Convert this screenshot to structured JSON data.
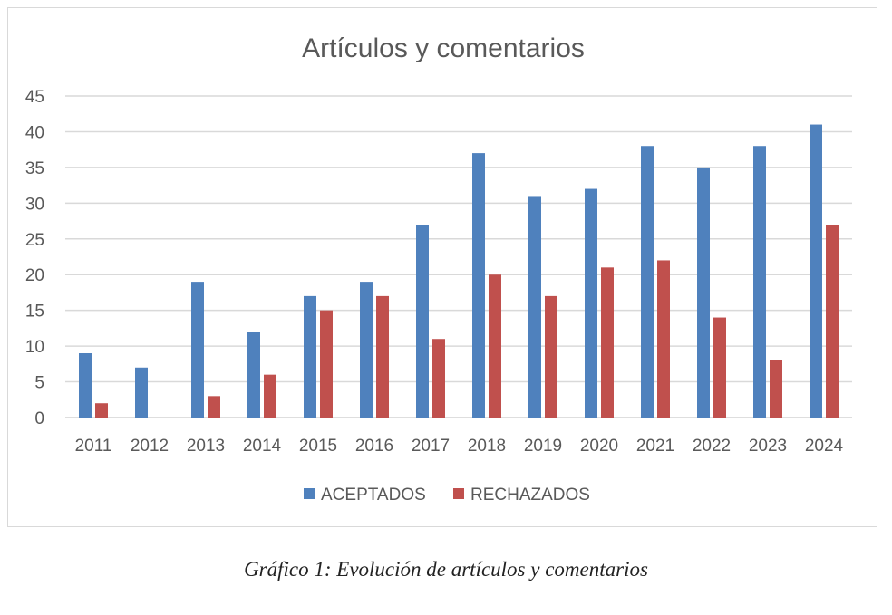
{
  "caption": "Gráfico 1: Evolución de artículos y comentarios",
  "chart_data": {
    "type": "bar",
    "title": "Artículos y comentarios",
    "xlabel": "",
    "ylabel": "",
    "categories": [
      "2011",
      "2012",
      "2013",
      "2014",
      "2015",
      "2016",
      "2017",
      "2018",
      "2019",
      "2020",
      "2021",
      "2022",
      "2023",
      "2024"
    ],
    "series": [
      {
        "name": "ACEPTADOS",
        "color": "#4f81bd",
        "values": [
          9,
          7,
          19,
          12,
          17,
          19,
          27,
          37,
          31,
          32,
          38,
          35,
          38,
          41
        ]
      },
      {
        "name": "RECHAZADOS",
        "color": "#c0504d",
        "values": [
          2,
          0,
          3,
          6,
          15,
          17,
          11,
          20,
          17,
          21,
          22,
          14,
          8,
          27
        ]
      }
    ],
    "ylim": [
      0,
      45
    ],
    "yticks": [
      0,
      5,
      10,
      15,
      20,
      25,
      30,
      35,
      40,
      45
    ],
    "grid": true,
    "legend": "bottom"
  }
}
